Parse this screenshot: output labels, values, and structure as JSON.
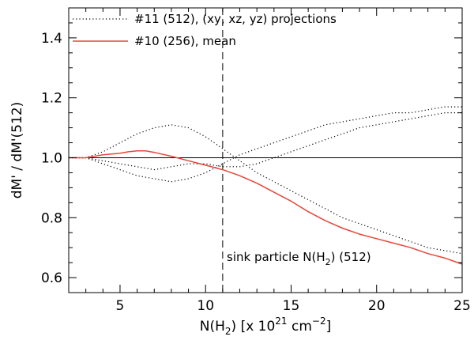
{
  "chart_data": {
    "type": "line",
    "title": "",
    "xlabel": "N(H2) [x 10^21 cm^-2]",
    "xlabel_parts": {
      "a": "N(H",
      "sub": "2",
      "b": ") [x 10",
      "sup1": "21",
      "c": " cm",
      "sup2": "−2",
      "d": "]"
    },
    "ylabel": "dM' / dM'(512)",
    "xlim": [
      2,
      25
    ],
    "ylim": [
      0.55,
      1.5
    ],
    "xticks": [
      5,
      10,
      15,
      20,
      25
    ],
    "xtick_labels": [
      "5",
      "10",
      "15",
      "20",
      "25"
    ],
    "yticks": [
      0.6,
      0.8,
      1.0,
      1.2,
      1.4
    ],
    "ytick_labels": [
      "0.6",
      "0.8",
      "1.0",
      "1.2",
      "1.4"
    ],
    "reference_hline": 1.0,
    "reference_vline": 11.0,
    "annotation": {
      "pre": "sink particle N(H",
      "sub": "2",
      "post": ") (512)"
    },
    "legend": [
      {
        "label": "#11 (512), (xy, xz, yz) projections",
        "style": "dotted",
        "color": "#000000"
      },
      {
        "label": "#10 (256), mean",
        "style": "solid",
        "color": "#e8463a"
      }
    ],
    "series": [
      {
        "name": "#11 (512), xy projection",
        "style": "dotted",
        "color": "#000000",
        "x": [
          2.0,
          3.0,
          4.0,
          5.0,
          6.0,
          7.0,
          8.0,
          9.0,
          10.0,
          11.0,
          12.0,
          13.0,
          14.0,
          15.0,
          16.0,
          17.0,
          18.0,
          19.0,
          20.0,
          21.0,
          22.0,
          23.0,
          24.0,
          25.0
        ],
        "y": [
          1.0,
          1.0,
          1.02,
          1.05,
          1.08,
          1.1,
          1.11,
          1.1,
          1.07,
          1.03,
          0.99,
          0.95,
          0.92,
          0.89,
          0.86,
          0.83,
          0.8,
          0.78,
          0.76,
          0.74,
          0.72,
          0.7,
          0.69,
          0.68
        ]
      },
      {
        "name": "#11 (512), xz projection",
        "style": "dotted",
        "color": "#000000",
        "x": [
          2.0,
          3.0,
          4.0,
          5.0,
          6.0,
          7.0,
          8.0,
          9.0,
          10.0,
          11.0,
          12.0,
          13.0,
          14.0,
          15.0,
          16.0,
          17.0,
          18.0,
          19.0,
          20.0,
          21.0,
          22.0,
          23.0,
          24.0,
          25.0
        ],
        "y": [
          1.0,
          1.0,
          0.98,
          0.96,
          0.94,
          0.93,
          0.92,
          0.93,
          0.95,
          0.98,
          1.01,
          1.03,
          1.05,
          1.07,
          1.09,
          1.11,
          1.12,
          1.13,
          1.14,
          1.15,
          1.15,
          1.16,
          1.17,
          1.17
        ]
      },
      {
        "name": "#11 (512), yz projection",
        "style": "dotted",
        "color": "#000000",
        "x": [
          2.0,
          3.0,
          4.0,
          5.0,
          6.0,
          7.0,
          8.0,
          9.0,
          10.0,
          11.0,
          12.0,
          13.0,
          14.0,
          15.0,
          16.0,
          17.0,
          18.0,
          19.0,
          20.0,
          21.0,
          22.0,
          23.0,
          24.0,
          25.0
        ],
        "y": [
          1.0,
          1.0,
          0.99,
          0.98,
          0.97,
          0.96,
          0.97,
          0.98,
          0.98,
          0.97,
          0.97,
          0.98,
          1.0,
          1.02,
          1.04,
          1.06,
          1.08,
          1.1,
          1.11,
          1.12,
          1.13,
          1.14,
          1.15,
          1.15
        ]
      },
      {
        "name": "#10 (256), mean",
        "style": "solid",
        "color": "#e8463a",
        "x": [
          2.0,
          3.0,
          4.0,
          5.0,
          5.5,
          6.0,
          6.5,
          7.0,
          8.0,
          9.0,
          10.0,
          11.0,
          12.0,
          13.0,
          14.0,
          15.0,
          16.0,
          17.0,
          18.0,
          19.0,
          20.0,
          21.0,
          22.0,
          23.0,
          24.0,
          25.0
        ],
        "y": [
          1.0,
          1.0,
          1.01,
          1.015,
          1.02,
          1.023,
          1.023,
          1.018,
          1.005,
          0.99,
          0.975,
          0.96,
          0.94,
          0.915,
          0.885,
          0.855,
          0.82,
          0.79,
          0.765,
          0.745,
          0.73,
          0.715,
          0.7,
          0.68,
          0.665,
          0.645
        ]
      }
    ]
  }
}
